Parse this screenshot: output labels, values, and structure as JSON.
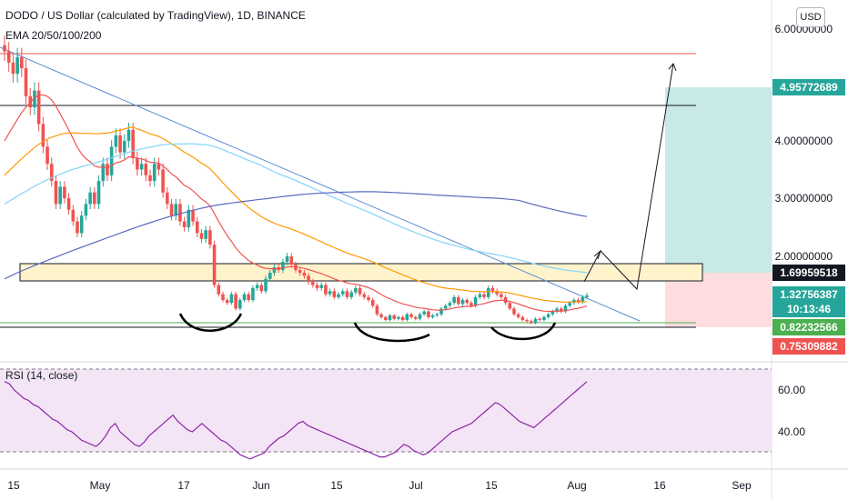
{
  "header": {
    "title": "DODO / US Dollar (calculated by TradingView), 1D, BINANCE",
    "ema_label": "EMA 20/50/100/200",
    "currency_button": "USD"
  },
  "rsi_label": "RSI (14, close)",
  "colors": {
    "up": "#26a69a",
    "down": "#ef5350",
    "ema20": "#ef5350",
    "ema50": "#ff9800",
    "ema100": "#81d4fa",
    "ema200": "#5c6bc0",
    "trend": "#5b8ccf",
    "zone": "#fff3cc",
    "target": "#b2dfdb",
    "stop": "#ffcdd2",
    "rsi_line": "#8e24aa",
    "rsi_bg": "#f3e5f5"
  },
  "chart_data": {
    "type": "candlestick",
    "instrument": "DODO / US Dollar (calculated by TradingView), 1D, BINANCE",
    "indicators": [
      "EMA 20/50/100/200",
      "RSI (14, close)"
    ],
    "x_ticks": [
      "15",
      "May",
      "17",
      "Jun",
      "15",
      "Jul",
      "15",
      "Aug",
      "16",
      "Sep"
    ],
    "y_ticks": [
      "6.00000000",
      "4.00000000",
      "3.00000000",
      "2.00000000"
    ],
    "rsi_ticks": [
      "60.00",
      "40.00"
    ],
    "price_labels": [
      {
        "text": "4.95772689",
        "value": 4.95772689,
        "color": "#26a69a"
      },
      {
        "text": "1.69959518",
        "value": 1.69959518,
        "color": "#131722"
      },
      {
        "text": "1.32756387",
        "value": 1.32756387,
        "color": "#26a69a"
      },
      {
        "text": "10:13:46",
        "value": 1.25,
        "color": "#26a69a"
      },
      {
        "text": "0.82232566",
        "value": 0.82232566,
        "color": "#4caf50"
      },
      {
        "text": "0.75309882",
        "value": 0.75309882,
        "color": "#ef5350"
      }
    ],
    "horizontal_levels": [
      5.5,
      4.6,
      0.8
    ],
    "ohlc_close": [
      5.6,
      5.4,
      5.2,
      5.5,
      5.3,
      4.8,
      4.6,
      4.9,
      4.3,
      3.9,
      3.6,
      3.3,
      2.9,
      3.2,
      3.0,
      2.8,
      2.6,
      2.4,
      2.7,
      2.9,
      3.1,
      2.9,
      3.3,
      3.6,
      3.4,
      3.9,
      4.1,
      3.8,
      4.0,
      4.2,
      3.7,
      3.5,
      3.6,
      3.4,
      3.3,
      3.6,
      3.5,
      3.1,
      2.9,
      2.7,
      2.9,
      2.6,
      2.5,
      2.8,
      2.6,
      2.4,
      2.3,
      2.45,
      2.2,
      1.5,
      1.35,
      1.25,
      1.2,
      1.35,
      1.1,
      1.25,
      1.35,
      1.25,
      1.45,
      1.5,
      1.4,
      1.6,
      1.7,
      1.8,
      1.75,
      1.9,
      2.0,
      1.85,
      1.75,
      1.7,
      1.65,
      1.55,
      1.5,
      1.45,
      1.5,
      1.35,
      1.4,
      1.3,
      1.35,
      1.4,
      1.3,
      1.38,
      1.45,
      1.35,
      1.3,
      1.25,
      1.15,
      1.0,
      0.95,
      0.9,
      0.98,
      0.92,
      0.95,
      0.9,
      1.0,
      0.95,
      0.92,
      1.0,
      1.05,
      0.95,
      0.98,
      1.0,
      1.1,
      1.15,
      1.2,
      1.3,
      1.18,
      1.25,
      1.2,
      1.15,
      1.3,
      1.35,
      1.3,
      1.45,
      1.4,
      1.35,
      1.3,
      1.2,
      1.1,
      1.0,
      0.95,
      0.9,
      0.88,
      0.85,
      0.92,
      0.9,
      0.95,
      1.0,
      1.05,
      1.1,
      1.05,
      1.15,
      1.2,
      1.25,
      1.22,
      1.3,
      1.33
    ],
    "rsi_values": [
      64,
      63,
      60,
      58,
      56,
      55,
      53,
      52,
      50,
      48,
      46,
      45,
      43,
      41,
      40,
      38,
      36,
      35,
      34,
      33,
      35,
      38,
      42,
      44,
      40,
      38,
      36,
      34,
      33,
      35,
      38,
      40,
      42,
      44,
      46,
      48,
      45,
      43,
      41,
      40,
      42,
      44,
      42,
      40,
      38,
      36,
      35,
      33,
      31,
      29,
      28,
      27,
      28,
      29,
      30,
      33,
      35,
      37,
      38,
      40,
      42,
      44,
      45,
      43,
      42,
      41,
      40,
      39,
      38,
      37,
      36,
      35,
      34,
      33,
      32,
      31,
      30,
      29,
      28,
      28,
      29,
      30,
      32,
      34,
      33,
      31,
      30,
      29,
      30,
      32,
      34,
      36,
      38,
      40,
      41,
      42,
      43,
      44,
      46,
      48,
      50,
      52,
      54,
      53,
      51,
      49,
      47,
      45,
      44,
      43,
      42,
      44,
      46,
      48,
      50,
      52,
      54,
      56,
      58,
      60,
      62,
      64
    ]
  }
}
